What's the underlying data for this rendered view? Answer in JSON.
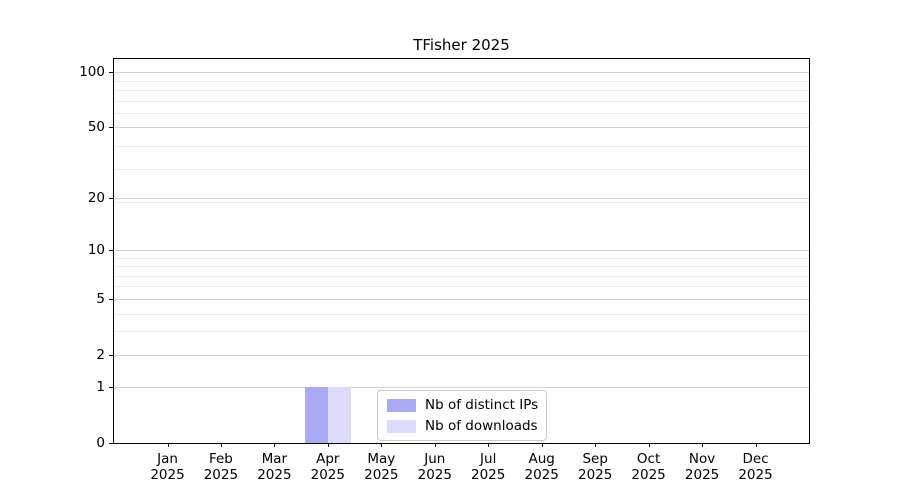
{
  "chart_data": {
    "type": "bar",
    "title": "TFisher 2025",
    "categories": [
      "Jan 2025",
      "Feb 2025",
      "Mar 2025",
      "Apr 2025",
      "May 2025",
      "Jun 2025",
      "Jul 2025",
      "Aug 2025",
      "Sep 2025",
      "Oct 2025",
      "Nov 2025",
      "Dec 2025"
    ],
    "x": {
      "months": [
        "Jan",
        "Feb",
        "Mar",
        "Apr",
        "May",
        "Jun",
        "Jul",
        "Aug",
        "Sep",
        "Oct",
        "Nov",
        "Dec"
      ],
      "year": "2025"
    },
    "series": [
      {
        "name": "Nb of distinct IPs",
        "color": "#a9a9f5",
        "values": [
          0,
          0,
          0,
          1,
          0,
          0,
          0,
          0,
          0,
          0,
          0,
          0
        ]
      },
      {
        "name": "Nb of downloads",
        "color": "#dcdcfa",
        "values": [
          0,
          0,
          0,
          1,
          0,
          0,
          0,
          0,
          0,
          0,
          0,
          0
        ]
      }
    ],
    "y_axis": {
      "scale": "log1p",
      "tick_values": [
        0,
        1,
        2,
        5,
        10,
        20,
        50,
        100
      ],
      "minor_gridline_values": [
        3,
        4,
        6,
        7,
        8,
        9,
        19,
        29,
        39,
        59,
        69,
        79,
        89
      ],
      "range_max": 116
    },
    "legend": {
      "position": "bottom-center",
      "entries": [
        "Nb of distinct IPs",
        "Nb of downloads"
      ]
    },
    "grid": true,
    "colors": {
      "major_grid": "#d2d2d2",
      "minor_grid": "#ececec",
      "spine": "#000000",
      "background": "#ffffff",
      "legend_border": "#c9c9c9"
    }
  }
}
